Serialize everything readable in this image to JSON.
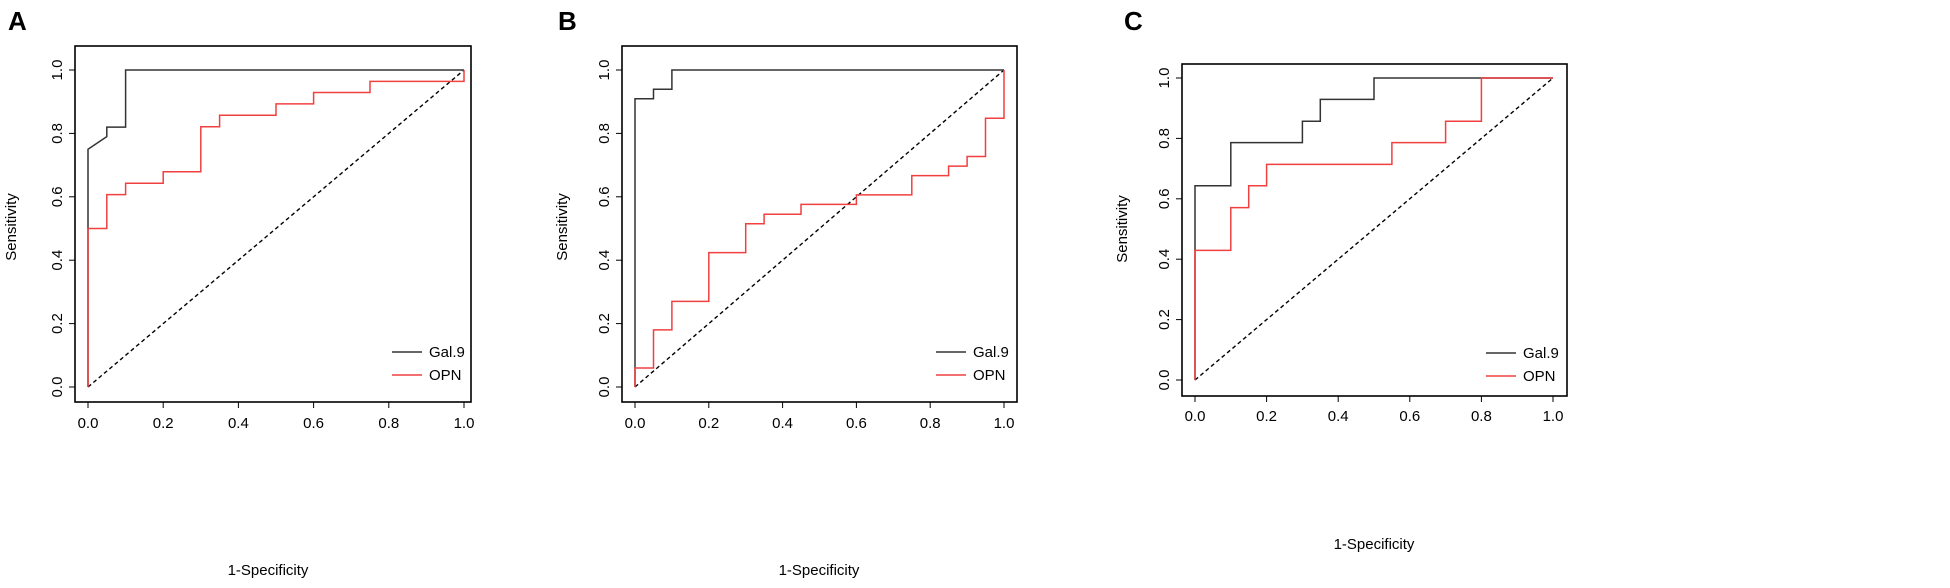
{
  "colors": {
    "gal9": "#333333",
    "opn": "#f04040",
    "diagonal": "#000000"
  },
  "chart_data": [
    {
      "panel": "A",
      "type": "line",
      "xlabel": "1-Specificity",
      "ylabel": "Sensitivity",
      "xlim": [
        0,
        1
      ],
      "ylim": [
        0,
        1
      ],
      "xticks": [
        "0.0",
        "0.2",
        "0.4",
        "0.6",
        "0.8",
        "1.0"
      ],
      "yticks": [
        "0.0",
        "0.2",
        "0.4",
        "0.6",
        "0.8",
        "1.0"
      ],
      "legend": {
        "position": "bottom-right",
        "entries": [
          "Gal.9",
          "OPN"
        ]
      },
      "series": [
        {
          "name": "Gal.9",
          "x": [
            0,
            0,
            0.05,
            0.05,
            0.1,
            0.1,
            1.0
          ],
          "y": [
            0,
            0.75,
            0.79,
            0.82,
            0.82,
            1.0,
            1.0
          ]
        },
        {
          "name": "OPN",
          "x": [
            0,
            0,
            0.05,
            0.05,
            0.1,
            0.1,
            0.2,
            0.2,
            0.3,
            0.3,
            0.35,
            0.35,
            0.5,
            0.5,
            0.6,
            0.6,
            0.75,
            0.75,
            1.0,
            1.0
          ],
          "y": [
            0,
            0.5,
            0.5,
            0.607,
            0.607,
            0.643,
            0.643,
            0.679,
            0.679,
            0.821,
            0.821,
            0.857,
            0.857,
            0.893,
            0.893,
            0.929,
            0.929,
            0.964,
            0.964,
            1.0
          ]
        }
      ]
    },
    {
      "panel": "B",
      "type": "line",
      "xlabel": "1-Specificity",
      "ylabel": "Sensitivity",
      "xlim": [
        0,
        1
      ],
      "ylim": [
        0,
        1
      ],
      "xticks": [
        "0.0",
        "0.2",
        "0.4",
        "0.6",
        "0.8",
        "1.0"
      ],
      "yticks": [
        "0.0",
        "0.2",
        "0.4",
        "0.6",
        "0.8",
        "1.0"
      ],
      "legend": {
        "position": "bottom-right",
        "entries": [
          "Gal.9",
          "OPN"
        ]
      },
      "series": [
        {
          "name": "Gal.9",
          "x": [
            0,
            0,
            0.05,
            0.05,
            0.1,
            0.1,
            1.0
          ],
          "y": [
            0,
            0.909,
            0.909,
            0.939,
            0.939,
            1.0,
            1.0
          ]
        },
        {
          "name": "OPN",
          "x": [
            0,
            0,
            0.05,
            0.05,
            0.1,
            0.1,
            0.2,
            0.2,
            0.3,
            0.3,
            0.35,
            0.35,
            0.45,
            0.45,
            0.6,
            0.6,
            0.75,
            0.75,
            0.85,
            0.85,
            0.9,
            0.9,
            0.95,
            0.95,
            1.0,
            1.0
          ],
          "y": [
            0,
            0.06,
            0.06,
            0.18,
            0.18,
            0.27,
            0.27,
            0.424,
            0.424,
            0.515,
            0.515,
            0.545,
            0.545,
            0.576,
            0.576,
            0.606,
            0.606,
            0.667,
            0.667,
            0.697,
            0.697,
            0.727,
            0.727,
            0.848,
            0.848,
            1.0
          ]
        }
      ]
    },
    {
      "panel": "C",
      "type": "line",
      "xlabel": "1-Specificity",
      "ylabel": "Sensitivity",
      "xlim": [
        0,
        1
      ],
      "ylim": [
        0,
        1
      ],
      "xticks": [
        "0.0",
        "0.2",
        "0.4",
        "0.6",
        "0.8",
        "1.0"
      ],
      "yticks": [
        "0.0",
        "0.2",
        "0.4",
        "0.6",
        "0.8",
        "1.0"
      ],
      "legend": {
        "position": "bottom-right",
        "entries": [
          "Gal.9",
          "OPN"
        ]
      },
      "series": [
        {
          "name": "Gal.9",
          "x": [
            0,
            0,
            0.1,
            0.1,
            0.3,
            0.3,
            0.35,
            0.35,
            0.5,
            0.5,
            1.0
          ],
          "y": [
            0,
            0.643,
            0.643,
            0.786,
            0.786,
            0.857,
            0.857,
            0.929,
            0.929,
            1.0,
            1.0
          ]
        },
        {
          "name": "OPN",
          "x": [
            0,
            0,
            0.1,
            0.1,
            0.15,
            0.15,
            0.2,
            0.2,
            0.55,
            0.55,
            0.7,
            0.7,
            0.8,
            0.8,
            1.0
          ],
          "y": [
            0,
            0.429,
            0.429,
            0.571,
            0.571,
            0.643,
            0.643,
            0.714,
            0.714,
            0.786,
            0.786,
            0.857,
            0.857,
            1.0,
            1.0
          ]
        }
      ]
    }
  ]
}
